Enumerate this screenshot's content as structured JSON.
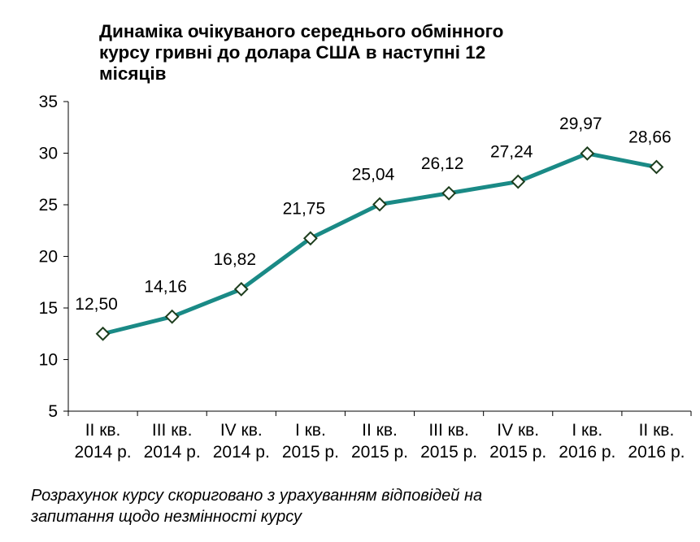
{
  "chart_data": {
    "type": "line",
    "title_lines": [
      "Динаміка очікуваного середнього  обмінного",
      "курсу гривні до долара США в наступні 12",
      "місяців"
    ],
    "categories": [
      [
        "II кв.",
        "2014 р."
      ],
      [
        "III кв.",
        "2014 р."
      ],
      [
        "IV кв.",
        "2014 р."
      ],
      [
        "I кв.",
        "2015 р."
      ],
      [
        "II кв.",
        "2015 р."
      ],
      [
        "III кв.",
        "2015 р."
      ],
      [
        "IV кв.",
        "2015 р."
      ],
      [
        "I кв.",
        "2016 р."
      ],
      [
        "II кв.",
        "2016 р."
      ]
    ],
    "values": [
      12.5,
      14.16,
      16.82,
      21.75,
      25.04,
      26.12,
      27.24,
      29.97,
      28.66
    ],
    "data_labels": [
      "12,50",
      "14,16",
      "16,82",
      "21,75",
      "25,04",
      "26,12",
      "27,24",
      "29,97",
      "28,66"
    ],
    "y_ticks": [
      "5",
      "10",
      "15",
      "20",
      "25",
      "30",
      "35"
    ],
    "ylim": [
      5,
      35
    ],
    "xlabel": "",
    "ylabel": "",
    "grid": false,
    "legend": "none",
    "line_color": "#1a8a86",
    "marker_fill": "#ffffff",
    "marker_stroke": "#1d3d1d",
    "footnote_lines": [
      "Розрахунок курсу скориговано з урахуванням відповідей на",
      "запитання щодо незмінності курсу"
    ]
  }
}
